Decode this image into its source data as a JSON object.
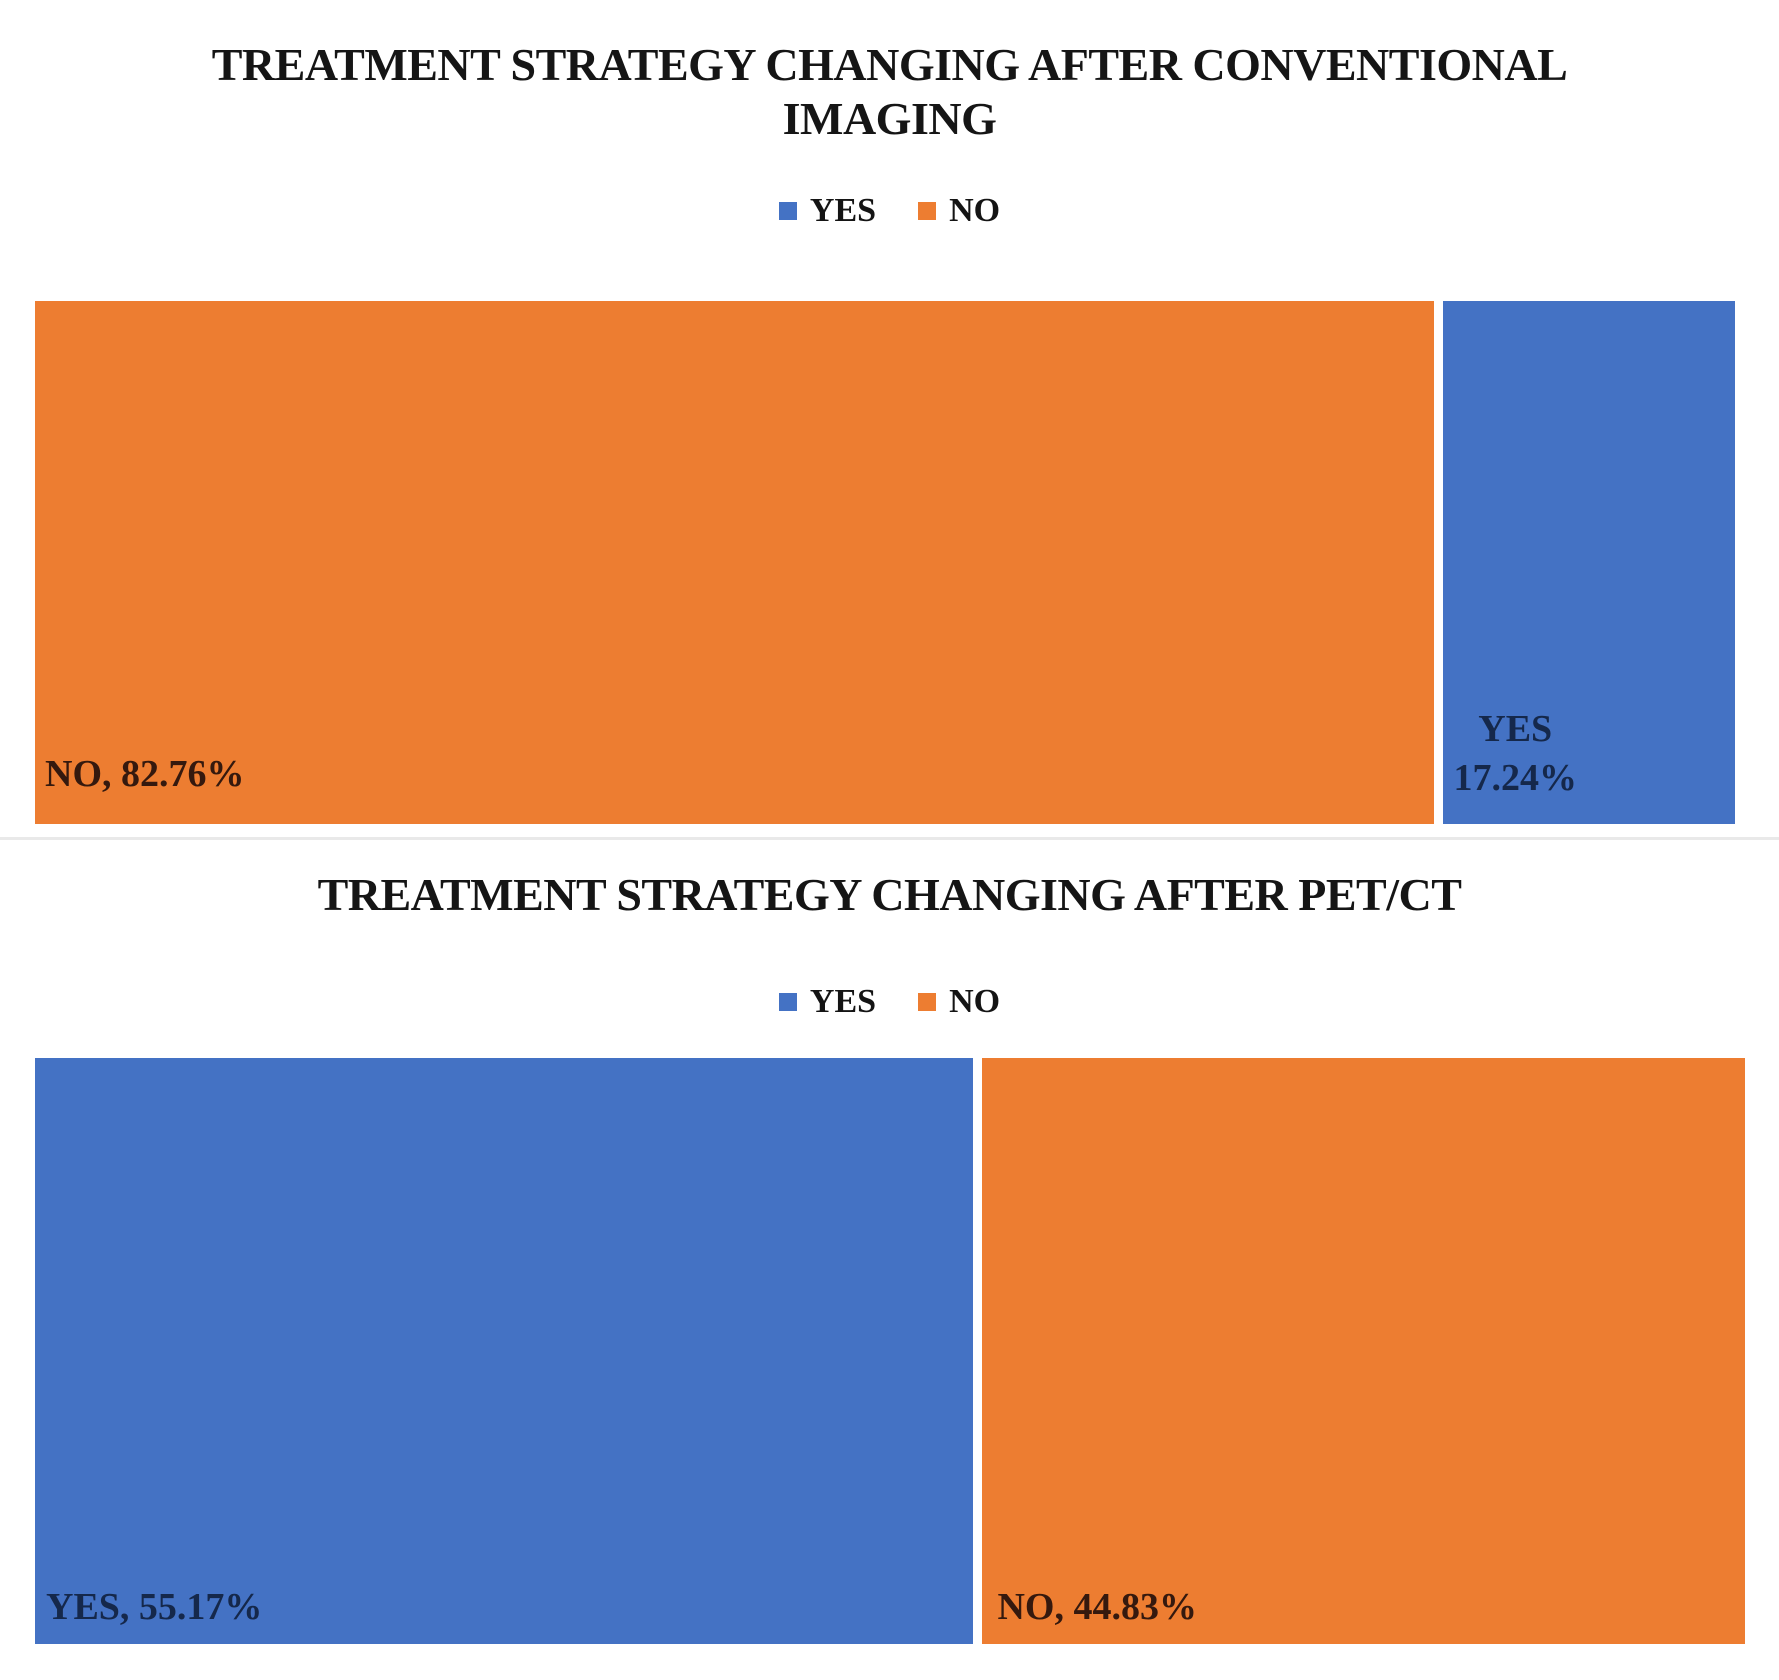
{
  "colors": {
    "yes_blue": "#4472C4",
    "no_orange": "#ED7D31",
    "title_text": "#151515",
    "label_on_orange": "#35190e",
    "label_on_blue": "#15284b",
    "divider": "#e9e9e9",
    "background": "#ffffff"
  },
  "chart_data": [
    {
      "type": "bar",
      "subtype": "100%-stacked-horizontal",
      "title": "TREATMENT STRATEGY CHANGING AFTER CONVENTIONAL IMAGING",
      "legend_position": "top",
      "legend": [
        {
          "name": "YES",
          "color": "#4472C4"
        },
        {
          "name": "NO",
          "color": "#ED7D31"
        }
      ],
      "categories": [
        "NO",
        "YES"
      ],
      "values": [
        82.76,
        17.24
      ],
      "units": "%",
      "xlim": [
        0,
        100
      ],
      "grid": false,
      "segments": [
        {
          "category": "NO",
          "value": 82.76,
          "color": "#ED7D31",
          "data_label": "NO, 82.76%"
        },
        {
          "category": "YES",
          "value": 17.24,
          "color": "#4472C4",
          "data_label_line1": "YES",
          "data_label_line2": "17.24%"
        }
      ]
    },
    {
      "type": "bar",
      "subtype": "100%-stacked-horizontal",
      "title": "TREATMENT STRATEGY CHANGING AFTER PET/CT",
      "legend_position": "top",
      "legend": [
        {
          "name": "YES",
          "color": "#4472C4"
        },
        {
          "name": "NO",
          "color": "#ED7D31"
        }
      ],
      "categories": [
        "YES",
        "NO"
      ],
      "values": [
        55.17,
        44.83
      ],
      "units": "%",
      "xlim": [
        0,
        100
      ],
      "grid": false,
      "segments": [
        {
          "category": "YES",
          "value": 55.17,
          "color": "#4472C4",
          "data_label": "YES, 55.17%"
        },
        {
          "category": "NO",
          "value": 44.83,
          "color": "#ED7D31",
          "data_label": "NO, 44.83%"
        }
      ]
    }
  ]
}
